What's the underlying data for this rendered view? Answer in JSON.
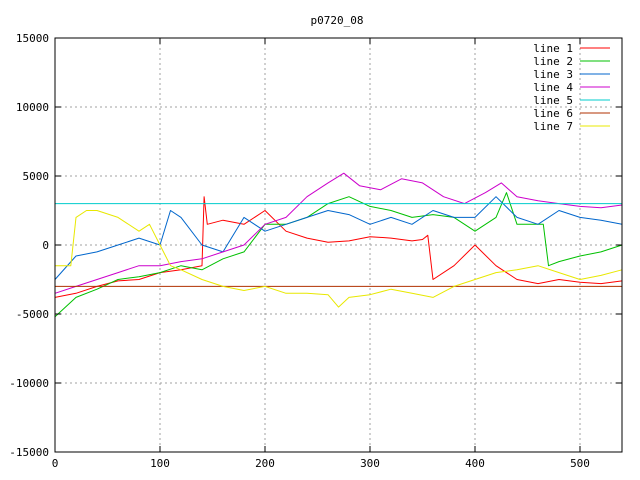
{
  "chart_data": {
    "type": "line",
    "title": "p0720_08",
    "xlabel": "",
    "ylabel": "",
    "xlim": [
      0,
      540
    ],
    "ylim": [
      -15000,
      15000
    ],
    "xticks": [
      0,
      100,
      200,
      300,
      400,
      500
    ],
    "yticks": [
      -15000,
      -10000,
      -5000,
      0,
      5000,
      10000,
      15000
    ],
    "xtick_labels": [
      "0",
      "100",
      "200",
      "300",
      "400",
      "500"
    ],
    "ytick_labels": [
      "-15000",
      "-10000",
      "-5000",
      "0",
      "5000",
      "10000",
      "15000"
    ],
    "grid": true,
    "legend_position": "top-right",
    "series": [
      {
        "name": "line 1",
        "color": "#ff0000",
        "x": [
          0,
          20,
          40,
          60,
          80,
          100,
          120,
          140,
          142,
          145,
          160,
          180,
          200,
          220,
          240,
          260,
          280,
          300,
          320,
          340,
          350,
          355,
          360,
          380,
          400,
          420,
          440,
          460,
          480,
          500,
          520,
          540
        ],
        "y": [
          -3800,
          -3500,
          -3000,
          -2600,
          -2500,
          -2000,
          -1800,
          -1500,
          3500,
          1500,
          1800,
          1500,
          2500,
          1000,
          500,
          200,
          300,
          600,
          500,
          300,
          400,
          700,
          -2500,
          -1500,
          0,
          -1500,
          -2500,
          -2800,
          -2500,
          -2700,
          -2800,
          -2600
        ]
      },
      {
        "name": "line 2",
        "color": "#00c000",
        "x": [
          0,
          20,
          40,
          60,
          80,
          100,
          120,
          140,
          160,
          180,
          200,
          220,
          240,
          260,
          280,
          300,
          320,
          340,
          360,
          380,
          400,
          410,
          420,
          430,
          440,
          460,
          465,
          470,
          480,
          500,
          520,
          540
        ],
        "y": [
          -5200,
          -3800,
          -3200,
          -2500,
          -2300,
          -2000,
          -1500,
          -1800,
          -1000,
          -500,
          1500,
          1500,
          2000,
          3000,
          3500,
          2800,
          2500,
          2000,
          2200,
          2000,
          1000,
          1500,
          2000,
          3800,
          1500,
          1500,
          1500,
          -1500,
          -1200,
          -800,
          -500,
          0
        ]
      },
      {
        "name": "line 3",
        "color": "#0066cc",
        "x": [
          0,
          20,
          40,
          60,
          80,
          100,
          110,
          120,
          140,
          160,
          180,
          200,
          220,
          240,
          260,
          280,
          300,
          320,
          340,
          360,
          380,
          400,
          420,
          440,
          460,
          480,
          500,
          520,
          540
        ],
        "y": [
          -2500,
          -800,
          -500,
          0,
          500,
          0,
          2500,
          2000,
          0,
          -500,
          2000,
          1000,
          1500,
          2000,
          2500,
          2200,
          1500,
          2000,
          1500,
          2500,
          2000,
          2000,
          3500,
          2000,
          1500,
          2500,
          2000,
          1800,
          1500
        ]
      },
      {
        "name": "line 4",
        "color": "#cc00cc",
        "x": [
          0,
          20,
          40,
          60,
          80,
          100,
          120,
          140,
          160,
          180,
          200,
          220,
          240,
          260,
          275,
          290,
          310,
          330,
          350,
          370,
          390,
          410,
          425,
          440,
          460,
          480,
          500,
          520,
          540
        ],
        "y": [
          -3500,
          -3000,
          -2500,
          -2000,
          -1500,
          -1500,
          -1200,
          -1000,
          -500,
          0,
          1500,
          2000,
          3500,
          4500,
          5200,
          4300,
          4000,
          4800,
          4500,
          3500,
          3000,
          3800,
          4500,
          3500,
          3200,
          3000,
          2800,
          2700,
          2900
        ]
      },
      {
        "name": "line 5",
        "color": "#00cccc",
        "x": [
          0,
          100,
          200,
          300,
          400,
          500,
          540
        ],
        "y": [
          3000,
          3000,
          3000,
          3000,
          3000,
          3000,
          3000
        ]
      },
      {
        "name": "line 6",
        "color": "#b03000",
        "x": [
          0,
          100,
          200,
          300,
          400,
          500,
          540
        ],
        "y": [
          -3000,
          -3000,
          -3000,
          -3000,
          -3000,
          -3000,
          -3000
        ]
      },
      {
        "name": "line 7",
        "color": "#e8e800",
        "x": [
          0,
          10,
          15,
          20,
          30,
          40,
          60,
          80,
          90,
          100,
          110,
          120,
          140,
          160,
          180,
          200,
          220,
          240,
          260,
          270,
          280,
          300,
          320,
          340,
          360,
          380,
          400,
          420,
          440,
          460,
          480,
          500,
          520,
          540
        ],
        "y": [
          -1500,
          -1500,
          -1500,
          2000,
          2500,
          2500,
          2000,
          1000,
          1500,
          0,
          -1500,
          -1800,
          -2500,
          -3000,
          -3300,
          -3000,
          -3500,
          -3500,
          -3600,
          -4500,
          -3800,
          -3600,
          -3200,
          -3500,
          -3800,
          -3000,
          -2500,
          -2000,
          -1800,
          -1500,
          -2000,
          -2500,
          -2200,
          -1800
        ]
      }
    ]
  }
}
